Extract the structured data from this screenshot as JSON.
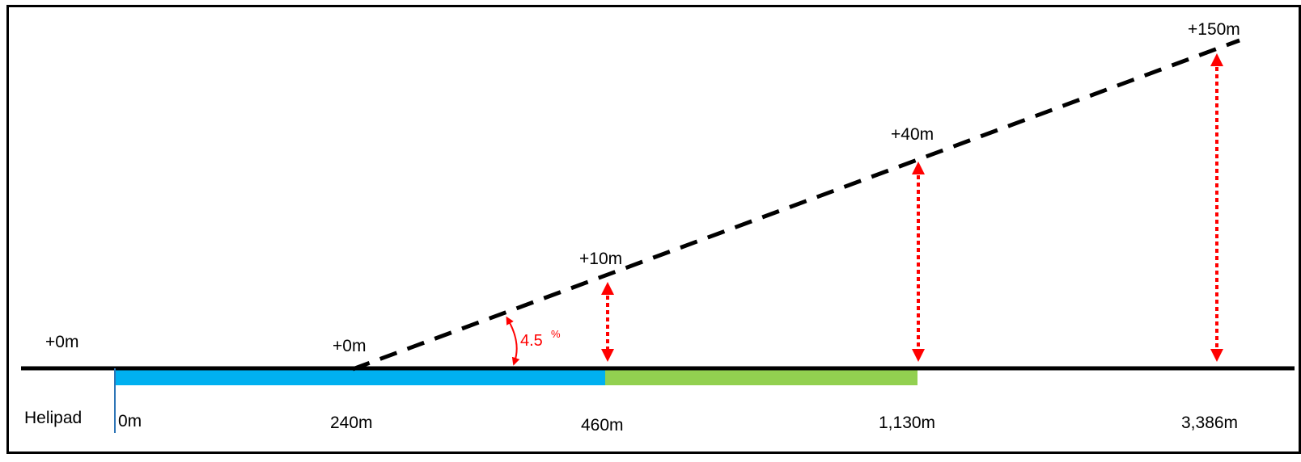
{
  "ground_labels": {
    "left_height": "+0m",
    "slope_start_height": "+0m"
  },
  "helipad_label": "Helipad",
  "distance_labels": [
    "0m",
    "240m",
    "460m",
    "1,130m",
    "3,386m"
  ],
  "height_labels": [
    "+10m",
    "+40m",
    "+150m"
  ],
  "slope": {
    "value": "4.5",
    "unit": "%"
  },
  "colors": {
    "blue_section": "#00b0f0",
    "green_section": "#92d050",
    "arrows": "#ff0000",
    "slope_line": "#000000"
  }
}
